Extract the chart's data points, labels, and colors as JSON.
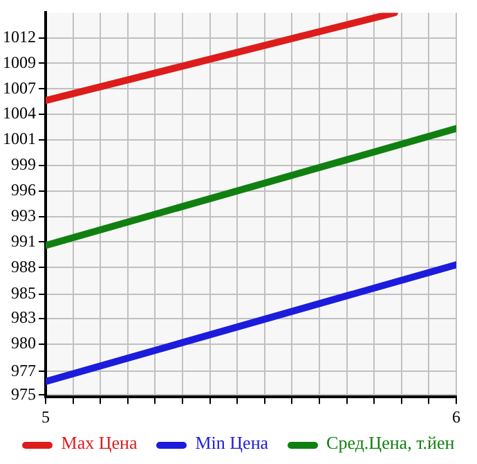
{
  "chart_data": {
    "type": "line",
    "x": [
      5,
      6
    ],
    "series": [
      {
        "name": "Max Цена",
        "color": "#dd1c1c",
        "x": [
          5,
          5.85
        ],
        "values": [
          1005.5,
          1014.6
        ]
      },
      {
        "name": "Min Цена",
        "color": "#1c1cdd",
        "values": [
          976.4,
          988.5
        ]
      },
      {
        "name": "Сред.Цена, т.йен",
        "color": "#108010",
        "values": [
          990.5,
          1002.6
        ]
      }
    ],
    "xlim": [
      5,
      6
    ],
    "xticks": [
      5,
      {
        "value": 5.0667,
        "label": null
      },
      {
        "value": 5.1333,
        "label": null
      },
      {
        "value": 5.2,
        "label": null
      },
      {
        "value": 5.2667,
        "label": null
      },
      {
        "value": 5.3333,
        "label": null
      },
      {
        "value": 5.4,
        "label": null
      },
      {
        "value": 5.4667,
        "label": null
      },
      {
        "value": 5.5333,
        "label": null
      },
      {
        "value": 5.6,
        "label": null
      },
      {
        "value": 5.6667,
        "label": null
      },
      {
        "value": 5.7333,
        "label": null
      },
      {
        "value": 5.8,
        "label": null
      },
      {
        "value": 5.8667,
        "label": null
      },
      {
        "value": 5.9333,
        "label": null
      },
      6
    ],
    "ylim": [
      974.8,
      1014.6
    ],
    "yticks": [
      975,
      {
        "value": 977.45,
        "label": "977"
      },
      {
        "value": 980.29,
        "label": "980"
      },
      {
        "value": 982.93,
        "label": "983"
      },
      {
        "value": 985.45,
        "label": "985"
      },
      {
        "value": 988.21,
        "label": "988"
      },
      {
        "value": 990.86,
        "label": "991"
      },
      {
        "value": 993.5,
        "label": "993"
      },
      {
        "value": 996.14,
        "label": "996"
      },
      {
        "value": 998.79,
        "label": "999"
      },
      {
        "value": 1001.43,
        "label": "1001"
      },
      {
        "value": 1004.07,
        "label": "1004"
      },
      {
        "value": 1006.71,
        "label": "1007"
      },
      {
        "value": 1009.36,
        "label": "1009"
      },
      1012
    ],
    "grid": true,
    "legend": "bottom",
    "marker": "none",
    "line_style": "solid"
  }
}
